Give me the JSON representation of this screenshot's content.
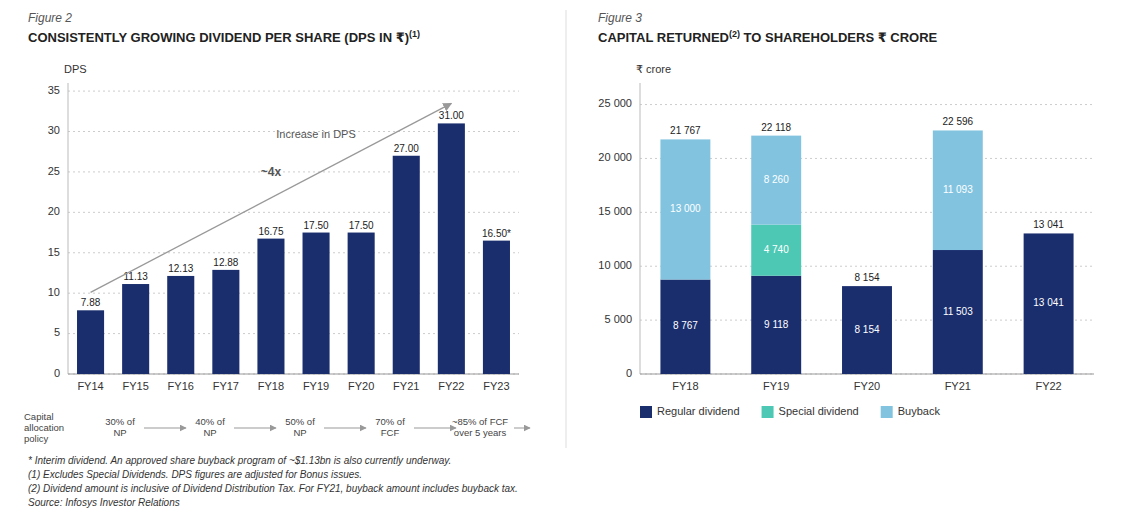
{
  "chart_data": [
    {
      "type": "bar",
      "subtitle": "Figure 2",
      "title": "CONSISTENTLY GROWING DIVIDEND PER SHARE (DPS IN ₹)",
      "title_superscript": "(1)",
      "y_label": "DPS",
      "categories": [
        "FY14",
        "FY15",
        "FY16",
        "FY17",
        "FY18",
        "FY19",
        "FY20",
        "FY21",
        "FY22",
        "FY23"
      ],
      "values": [
        7.88,
        11.13,
        12.13,
        12.88,
        16.75,
        17.5,
        17.5,
        27.0,
        31.0,
        16.5
      ],
      "value_labels": [
        "7.88",
        "11.13",
        "12.13",
        "12.88",
        "16.75",
        "17.50",
        "17.50",
        "27.00",
        "31.00",
        "16.50*"
      ],
      "data_labels": true,
      "color": "#1a2e6e",
      "ylim": [
        0,
        36
      ],
      "yticks": [
        0,
        5,
        10,
        15,
        20,
        25,
        30,
        35
      ],
      "grid": true,
      "annotations": [
        "Increase in DPS",
        "~4x"
      ],
      "policy_label": "Capital\nallocation\npolicy",
      "policy_steps": [
        "30% of\nNP",
        "40% of\nNP",
        "50% of\nNP",
        "70% of\nFCF",
        "~85% of FCF\nover 5 years"
      ]
    },
    {
      "type": "bar",
      "subtitle": "Figure 3",
      "title": "CAPITAL RETURNED",
      "title_superscript": "(2)",
      "title_rest": " TO SHAREHOLDERS ₹ CRORE",
      "y_label": "₹ crore",
      "categories": [
        "FY18",
        "FY19",
        "FY20",
        "FY21",
        "FY22"
      ],
      "stacked": true,
      "data_labels": true,
      "series": [
        {
          "name": "Regular dividend",
          "color": "#1a2e6e",
          "values": [
            8767,
            9118,
            8154,
            11503,
            13041
          ],
          "value_labels": [
            "8 767",
            "9 118",
            "8 154",
            "11 503",
            "13 041"
          ]
        },
        {
          "name": "Special dividend",
          "color": "#4dc8b4",
          "values": [
            0,
            4740,
            0,
            0,
            0
          ],
          "value_labels": [
            null,
            "4 740",
            null,
            null,
            null
          ]
        },
        {
          "name": "Buyback",
          "color": "#82c4e0",
          "values": [
            13000,
            8260,
            0,
            11093,
            0
          ],
          "value_labels": [
            "13 000",
            "8 260",
            null,
            "11 093",
            null
          ]
        }
      ],
      "totals": [
        21767,
        22118,
        8154,
        22596,
        13041
      ],
      "total_labels": [
        "21 767",
        "22 118",
        "8 154",
        "22 596",
        "13 041"
      ],
      "ylim": [
        0,
        27000
      ],
      "yticks": [
        0,
        {
          "value": 5000,
          "label": "5 000"
        },
        {
          "value": 10000,
          "label": "10 000"
        },
        {
          "value": 15000,
          "label": "15 000"
        },
        {
          "value": 20000,
          "label": "20 000"
        },
        {
          "value": 25000,
          "label": "25 000"
        }
      ],
      "grid": true,
      "legend": "bottom"
    }
  ],
  "footnotes": [
    "* Interim dividend. An approved share buyback program of ~$1.13bn is also currently underway.",
    "(1) Excludes Special Dividends. DPS figures are adjusted for Bonus issues.",
    "(2) Dividend amount is inclusive of Dividend Distribution Tax. For FY21, buyback amount includes buyback tax.",
    "Source: Infosys Investor Relations"
  ]
}
